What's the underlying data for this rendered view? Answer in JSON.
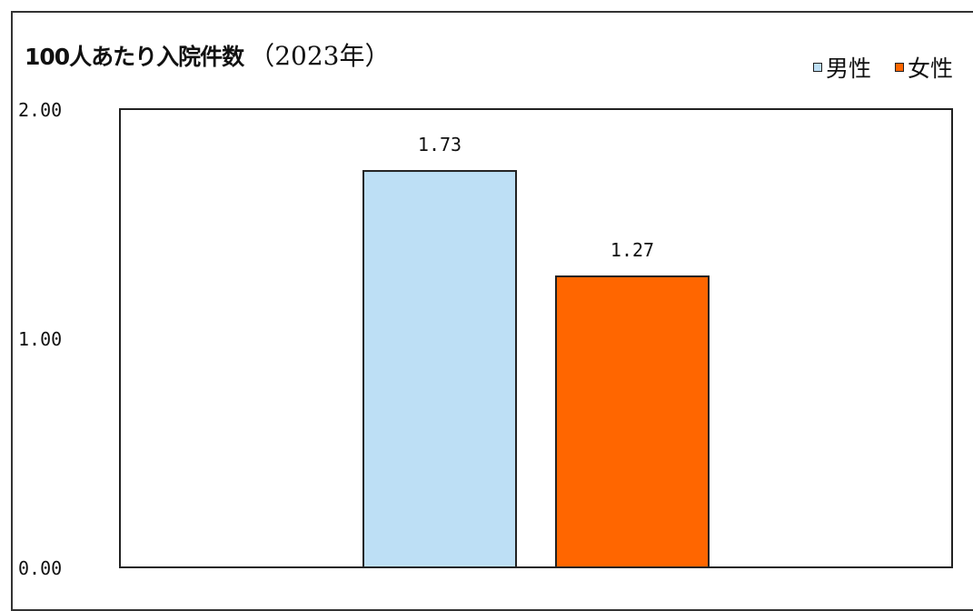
{
  "chart_data": {
    "type": "bar",
    "title": "100人あたり入院件数",
    "subtitle": "（2023年）",
    "categories": [
      ""
    ],
    "series": [
      {
        "name": "男性",
        "values": [
          1.73
        ],
        "color": "#BDDFF5",
        "label": "1.73"
      },
      {
        "name": "女性",
        "values": [
          1.27
        ],
        "color": "#FF6600",
        "label": "1.27"
      }
    ],
    "ylim": [
      0,
      2
    ],
    "yticks": [
      {
        "value": 0,
        "label": "0.00"
      },
      {
        "value": 1,
        "label": "1.00"
      },
      {
        "value": 2,
        "label": "2.00"
      }
    ],
    "xlabel": "",
    "ylabel": "",
    "grid": false,
    "legend_position": "top-right"
  }
}
